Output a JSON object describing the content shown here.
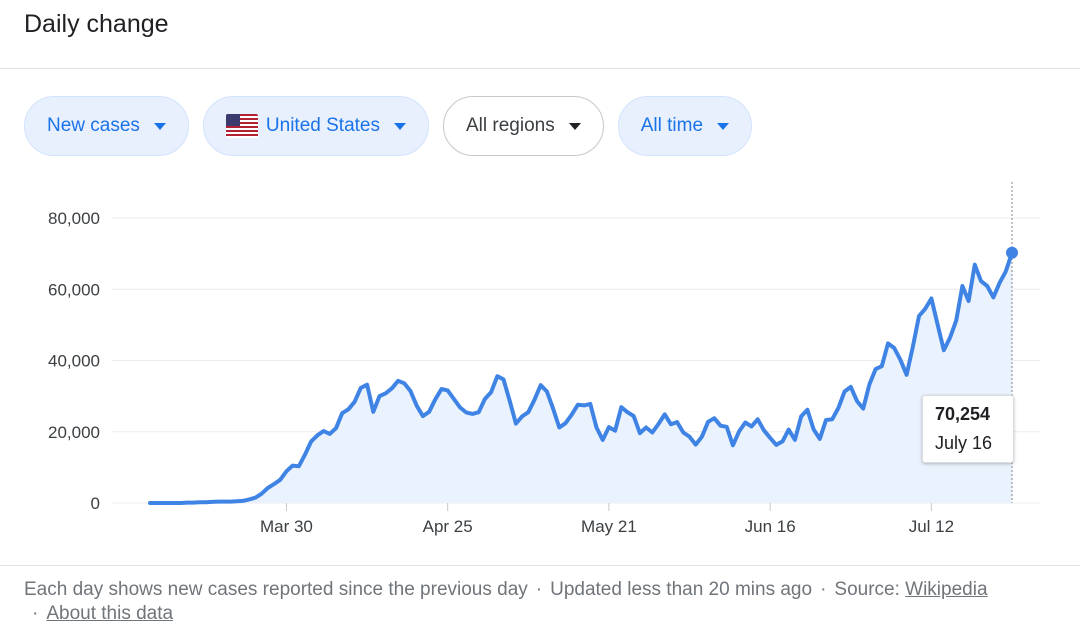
{
  "header": {
    "title": "Daily change"
  },
  "filters": [
    {
      "label": "New cases",
      "style": "blue"
    },
    {
      "label": "United States",
      "style": "blue",
      "flag": "us-flag-icon"
    },
    {
      "label": "All regions",
      "style": "plain"
    },
    {
      "label": "All time",
      "style": "blue"
    }
  ],
  "tooltip": {
    "value": "70,254",
    "date": "July 16"
  },
  "footer": {
    "text": "Each day shows new cases reported since the previous day",
    "updated": "Updated less than 20 mins ago",
    "source_label": "Source:",
    "source_link": "Wikipedia",
    "about_link": "About this data"
  },
  "colors": {
    "line": "#3f84e5",
    "area": "#eaf2fd",
    "accent": "#1a73e8",
    "grid": "#ececec"
  },
  "chart_data": {
    "type": "area",
    "title": "",
    "xlabel": "",
    "ylabel": "",
    "ylim": [
      0,
      80000
    ],
    "yticks": [
      0,
      20000,
      40000,
      60000,
      80000
    ],
    "ytick_labels": [
      "0",
      "20,000",
      "40,000",
      "60,000",
      "80,000"
    ],
    "xticks": [
      "Mar 30",
      "Apr 25",
      "May 21",
      "Jun 16",
      "Jul 12"
    ],
    "grid": true,
    "series": [
      {
        "values": [
          0,
          0,
          0,
          0,
          0,
          0,
          100,
          100,
          200,
          200,
          300,
          400,
          400,
          400,
          500,
          600,
          1000,
          1500,
          2600,
          4200,
          5300,
          6500,
          8900,
          10500,
          10300,
          13600,
          17300,
          19000,
          20200,
          19400,
          21000,
          25200,
          26300,
          28400,
          32300,
          33200,
          25600,
          30000,
          30800,
          32200,
          34300,
          33600,
          31400,
          27300,
          24400,
          25600,
          29100,
          32000,
          31600,
          29200,
          26800,
          25400,
          25000,
          25500,
          29200,
          31100,
          35600,
          34700,
          28700,
          22300,
          24300,
          25500,
          29000,
          33100,
          31300,
          26500,
          21200,
          22400,
          24800,
          27600,
          27400,
          27800,
          21200,
          17700,
          21300,
          20300,
          26900,
          25500,
          24400,
          19600,
          21200,
          19800,
          22200,
          24900,
          22100,
          22700,
          19800,
          18600,
          16400,
          18600,
          22800,
          23800,
          21700,
          21400,
          16200,
          20100,
          22600,
          21500,
          23500,
          20400,
          18300,
          16300,
          17300,
          20600,
          17700,
          24300,
          26200,
          20700,
          18000,
          23300,
          23500,
          26700,
          31300,
          32600,
          28600,
          26500,
          33300,
          37600,
          38400,
          44800,
          43500,
          40200,
          36000,
          43800,
          52500,
          54500,
          57400,
          50100,
          42900,
          46400,
          51200,
          60900,
          56700,
          66900,
          62300,
          60900,
          57700,
          61800,
          65000,
          70254
        ]
      }
    ]
  }
}
